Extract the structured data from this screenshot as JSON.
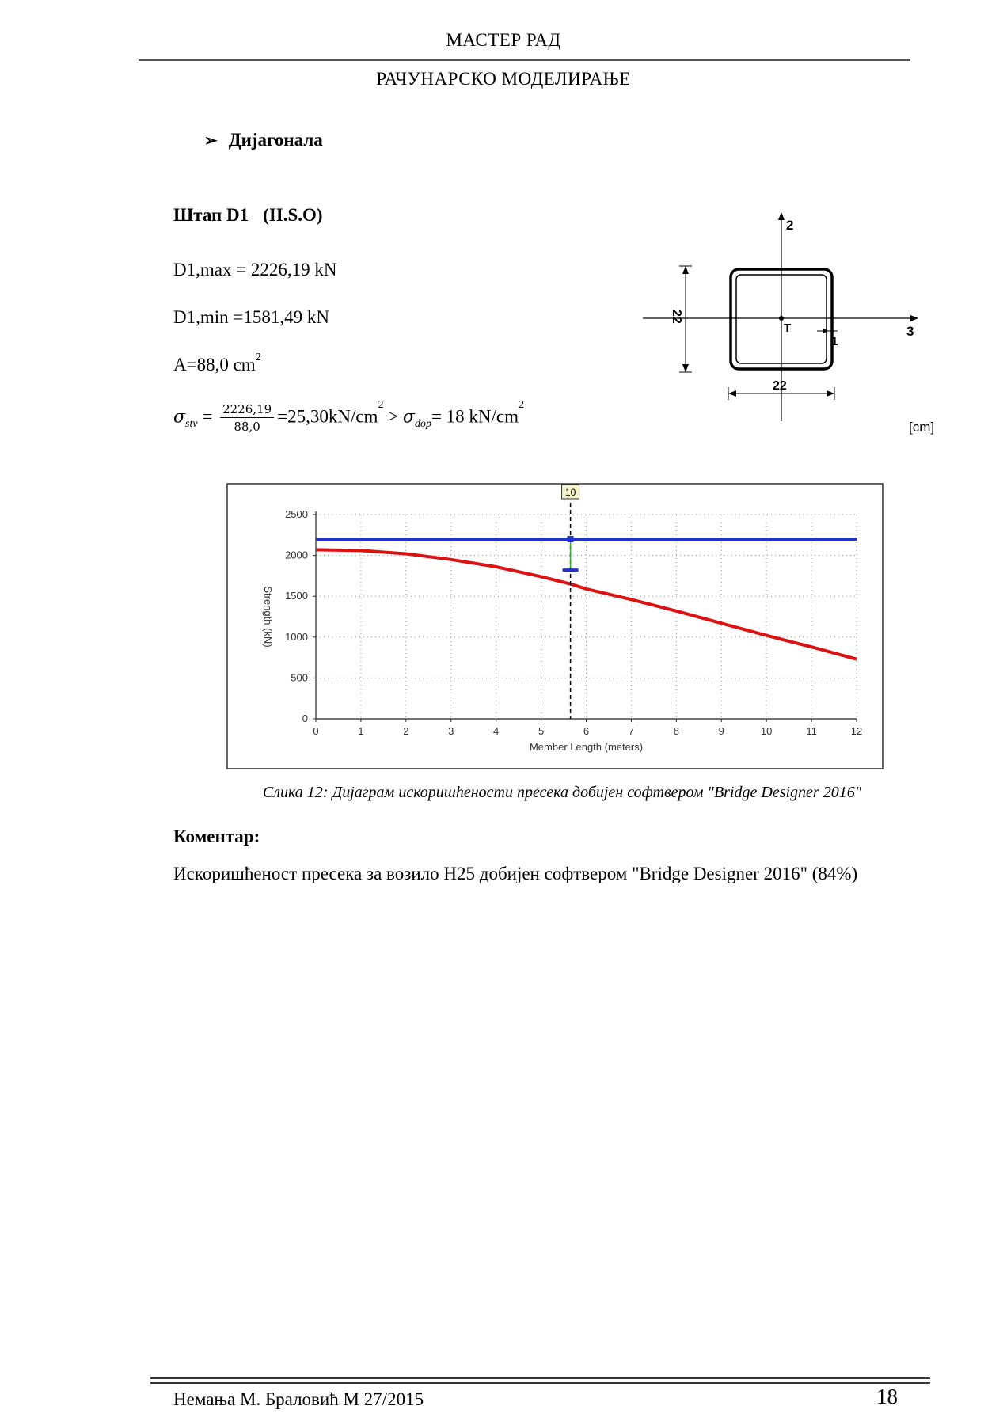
{
  "header": {
    "title": "МАСТЕР РАД",
    "subtitle": "РАЧУНАРСКО МОДЕЛИРАЊЕ"
  },
  "section": {
    "bullet": "➢",
    "title": "Дијагонала"
  },
  "member": {
    "name": "Штап D1",
    "group": "(II.S.O)"
  },
  "values": {
    "max": "D1,max = 2226,19 kN",
    "min": "D1,min =1581,49 kN",
    "area_base": "A=88,0 cm",
    "area_exp": "2"
  },
  "stress": {
    "sigma": "σ",
    "sub_stv": "stv",
    "eq": "=",
    "num": "2226,19",
    "den": "88,0",
    "result": "=25,30kN/cm",
    "exp": "2",
    "gt": " > ",
    "sub_dop": "dop",
    "allowed": "= 18 kN/cm",
    "allowed_exp": "2"
  },
  "section_diagram": {
    "axis2": "2",
    "axis3": "3",
    "dim_vertical": "22",
    "dim_horizontal": "22",
    "centroid": "T",
    "thickness": "1",
    "units": "[cm]"
  },
  "chart_data": {
    "type": "line",
    "xlabel": "Member Length (meters)",
    "ylabel": "Strength (kN)",
    "xlim": [
      0,
      12
    ],
    "ylim": [
      0,
      2500
    ],
    "xticks": [
      "0",
      "1",
      "2",
      "3",
      "4",
      "5",
      "6",
      "7",
      "8",
      "9",
      "10",
      "11",
      "12"
    ],
    "yticks": [
      "0",
      "500",
      "1000",
      "1500",
      "2000",
      "2500"
    ],
    "grid": true,
    "series": [
      {
        "color": "#2233cc",
        "x": [
          0,
          12
        ],
        "y": [
          2200,
          2200
        ]
      },
      {
        "color": "#dd1111",
        "x": [
          0,
          1,
          2,
          3,
          4,
          5,
          5.65,
          6,
          7,
          8,
          9,
          10,
          11,
          12
        ],
        "y": [
          2070,
          2060,
          2020,
          1950,
          1860,
          1740,
          1650,
          1590,
          1460,
          1320,
          1170,
          1020,
          880,
          730
        ]
      }
    ],
    "marker": {
      "x": 5.65,
      "label": "10",
      "top": 2200,
      "bottom": 1820
    }
  },
  "caption": "Слика 12: Дијаграм искоришћености пресека добијен софтвером \"Bridge Designer 2016\"",
  "comment": {
    "heading": "Коментар:",
    "text": "Искоришћеност пресека за возило H25 добијен софтвером \"Bridge Designer 2016\" (84%)"
  },
  "footer": {
    "author": "Немања М. Браловић М 27/2015",
    "page": "18"
  }
}
